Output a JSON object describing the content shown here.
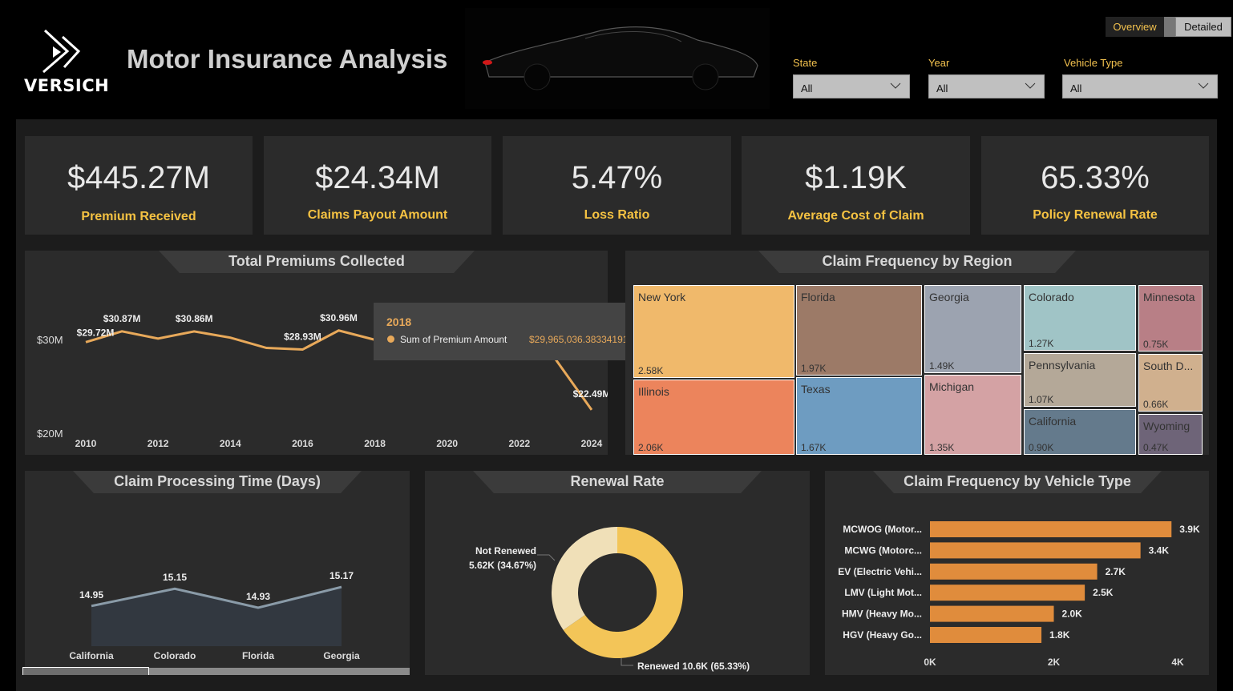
{
  "header": {
    "logo_text": "VERSICH",
    "title": "Motor Insurance Analysis"
  },
  "nav": {
    "overview": "Overview",
    "detailed": "Detailed"
  },
  "filters": [
    {
      "label": "State",
      "value": "All"
    },
    {
      "label": "Year",
      "value": "All"
    },
    {
      "label": "Vehicle Type",
      "value": "All"
    }
  ],
  "kpis": [
    {
      "value": "$445.27M",
      "label": "Premium Received"
    },
    {
      "value": "$24.34M",
      "label": "Claims Payout Amount"
    },
    {
      "value": "5.47%",
      "label": "Loss Ratio"
    },
    {
      "value": "$1.19K",
      "label": "Average Cost of Claim"
    },
    {
      "value": "65.33%",
      "label": "Policy Renewal Rate"
    }
  ],
  "colors": {
    "accent": "#f5c242",
    "line": "#e8a95a",
    "bar": "#e08c3c",
    "renewed": "#f3c558",
    "not_renewed": "#f0e0b8",
    "area": "#323840",
    "area_line": "#8a9ba8"
  },
  "chart_data": [
    {
      "type": "line",
      "title": "Total Premiums Collected",
      "x": [
        2010,
        2011,
        2012,
        2013,
        2014,
        2015,
        2016,
        2017,
        2018,
        2019,
        2020,
        2021,
        2022,
        2023,
        2024
      ],
      "values": [
        29.72,
        30.87,
        30.1,
        30.86,
        30.2,
        29.1,
        28.93,
        30.96,
        29.97,
        29.6,
        29.8,
        30.2,
        29.5,
        27.9,
        22.49
      ],
      "data_labels": [
        {
          "x": 2010,
          "text": "$29.72M"
        },
        {
          "x": 2011,
          "text": "$30.87M"
        },
        {
          "x": 2013,
          "text": "$30.86M"
        },
        {
          "x": 2016,
          "text": "$28.93M"
        },
        {
          "x": 2017,
          "text": "$30.96M"
        },
        {
          "x": 2024,
          "text": "$22.49M"
        }
      ],
      "yticks": [
        {
          "v": 30,
          "label": "$30M"
        },
        {
          "v": 20,
          "label": "$20M"
        }
      ],
      "xticks": [
        "2010",
        "2012",
        "2014",
        "2016",
        "2018",
        "2020",
        "2022",
        "2024"
      ],
      "tooltip": {
        "title": "2018",
        "series": "Sum of Premium Amount",
        "value": "$29,965,036.38334191"
      }
    },
    {
      "type": "treemap",
      "title": "Claim Frequency by Region",
      "items": [
        {
          "name": "New York",
          "label": "2.58K",
          "value": 2.58,
          "color": "#f0b96b"
        },
        {
          "name": "Illinois",
          "label": "2.06K",
          "value": 2.06,
          "color": "#ec845c"
        },
        {
          "name": "Florida",
          "label": "1.97K",
          "value": 1.97,
          "color": "#9c7a67"
        },
        {
          "name": "Texas",
          "label": "1.67K",
          "value": 1.67,
          "color": "#6e9cc1"
        },
        {
          "name": "Georgia",
          "label": "1.49K",
          "value": 1.49,
          "color": "#9ca3b0"
        },
        {
          "name": "Michigan",
          "label": "1.35K",
          "value": 1.35,
          "color": "#d4a2a4"
        },
        {
          "name": "Colorado",
          "label": "1.27K",
          "value": 1.27,
          "color": "#a0c4c6"
        },
        {
          "name": "Pennsylvania",
          "label": "1.07K",
          "value": 1.07,
          "color": "#b4a898"
        },
        {
          "name": "California",
          "label": "0.90K",
          "value": 0.9,
          "color": "#647a8c"
        },
        {
          "name": "Minnesota",
          "label": "0.75K",
          "value": 0.75,
          "color": "#b87f86"
        },
        {
          "name": "South D...",
          "label": "0.66K",
          "value": 0.66,
          "color": "#d0b08e"
        },
        {
          "name": "Wyoming",
          "label": "0.47K",
          "value": 0.47,
          "color": "#6e6478"
        }
      ]
    },
    {
      "type": "area",
      "title": "Claim Processing Time (Days)",
      "categories": [
        "California",
        "Colorado",
        "Florida",
        "Georgia"
      ],
      "values": [
        14.95,
        15.15,
        14.93,
        15.17
      ],
      "labels": [
        "14.95",
        "15.15",
        "14.93",
        "15.17"
      ]
    },
    {
      "type": "pie",
      "title": "Renewal Rate",
      "slices": [
        {
          "name": "Renewed",
          "label": "Renewed 10.6K (65.33%)",
          "value": 65.33
        },
        {
          "name": "Not Renewed",
          "label": "Not Renewed",
          "sublabel": "5.62K (34.67%)",
          "value": 34.67
        }
      ]
    },
    {
      "type": "bar",
      "title": "Claim Frequency by Vehicle Type",
      "categories": [
        "MCWOG (Motor...",
        "MCWG (Motorc...",
        "EV (Electric Vehi...",
        "LMV (Light Mot...",
        "HMV (Heavy Mo...",
        "HGV (Heavy Go..."
      ],
      "values": [
        3.9,
        3.4,
        2.7,
        2.5,
        2.0,
        1.8
      ],
      "labels": [
        "3.9K",
        "3.4K",
        "2.7K",
        "2.5K",
        "2.0K",
        "1.8K"
      ],
      "xticks": [
        {
          "v": 0,
          "label": "0K"
        },
        {
          "v": 2,
          "label": "2K"
        },
        {
          "v": 4,
          "label": "4K"
        }
      ],
      "xlim": [
        0,
        4
      ]
    }
  ]
}
